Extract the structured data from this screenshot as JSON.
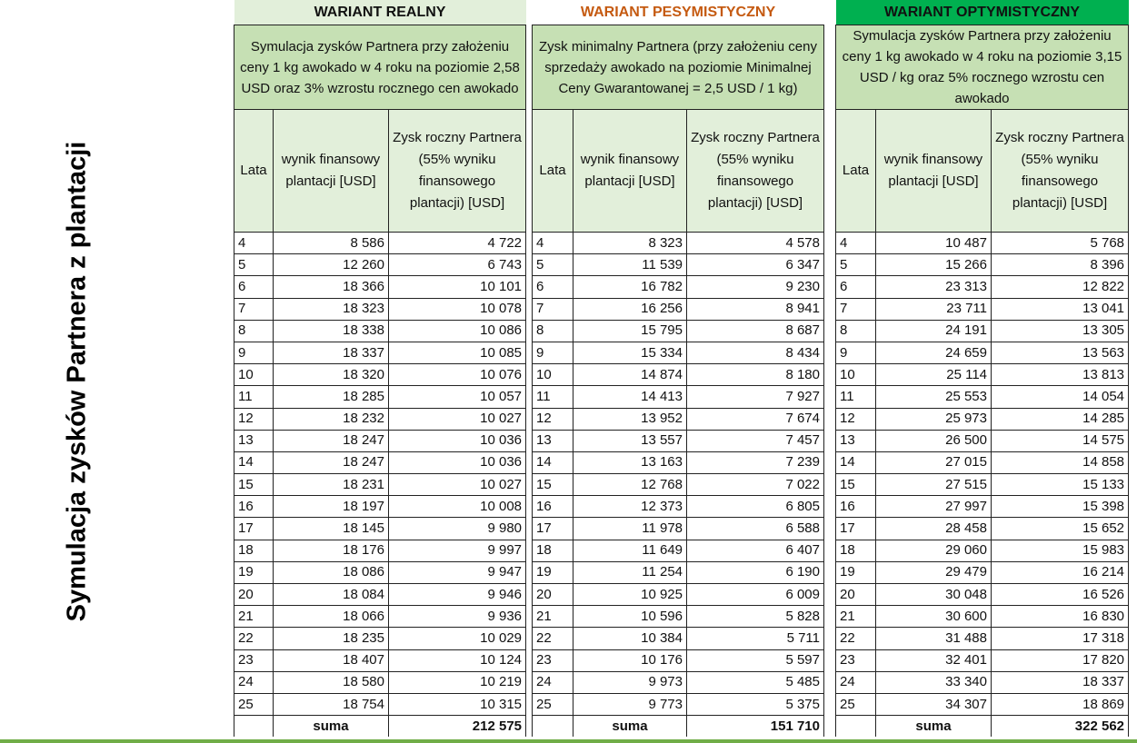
{
  "side_title": "Symulacja zysków Partnera z plantacji",
  "colors": {
    "desc_bg": "#c6e0b4",
    "header_bg": "#e2efda",
    "pesym_text": "#c55a11",
    "optym_bg": "#00b050",
    "realny_bg": "#e2efda",
    "bottom_bar": "#70ad47"
  },
  "headers": {
    "lata": "Lata",
    "wynik": "wynik finansowy plantacji [USD]",
    "zysk": "Zysk roczny Partnera (55% wyniku finansowego plantacji) [USD]",
    "suma": "suma"
  },
  "years": [
    "4",
    "5",
    "6",
    "7",
    "8",
    "9",
    "10",
    "11",
    "12",
    "13",
    "14",
    "15",
    "16",
    "17",
    "18",
    "19",
    "20",
    "21",
    "22",
    "23",
    "24",
    "25"
  ],
  "variants": [
    {
      "title": "WARIANT REALNY",
      "description": "Symulacja zysków Partnera przy założeniu ceny 1 kg awokado w 4 roku na poziomie 2,58 USD oraz 3% wzrostu rocznego cen awokado",
      "wynik": [
        "8 586",
        "12 260",
        "18 366",
        "18 323",
        "18 338",
        "18 337",
        "18 320",
        "18 285",
        "18 232",
        "18 247",
        "18 247",
        "18 231",
        "18 197",
        "18 145",
        "18 176",
        "18 086",
        "18 084",
        "18 066",
        "18 235",
        "18 407",
        "18 580",
        "18 754"
      ],
      "zysk": [
        "4 722",
        "6 743",
        "10 101",
        "10 078",
        "10 086",
        "10 085",
        "10 076",
        "10 057",
        "10 027",
        "10 036",
        "10 036",
        "10 027",
        "10 008",
        "9 980",
        "9 997",
        "9 947",
        "9 946",
        "9 936",
        "10 029",
        "10 124",
        "10 219",
        "10 315"
      ],
      "suma": "212 575"
    },
    {
      "title": "WARIANT PESYMISTYCZNY",
      "description": "Zysk minimalny Partnera (przy założeniu ceny sprzedaży awokado na poziomie Minimalnej Ceny Gwarantowanej = 2,5 USD / 1 kg)",
      "wynik": [
        "8 323",
        "11 539",
        "16 782",
        "16 256",
        "15 795",
        "15 334",
        "14 874",
        "14 413",
        "13 952",
        "13 557",
        "13 163",
        "12 768",
        "12 373",
        "11 978",
        "11 649",
        "11 254",
        "10 925",
        "10 596",
        "10 384",
        "10 176",
        "9 973",
        "9 773"
      ],
      "zysk": [
        "4 578",
        "6 347",
        "9 230",
        "8 941",
        "8 687",
        "8 434",
        "8 180",
        "7 927",
        "7 674",
        "7 457",
        "7 239",
        "7 022",
        "6 805",
        "6 588",
        "6 407",
        "6 190",
        "6 009",
        "5 828",
        "5 711",
        "5 597",
        "5 485",
        "5 375"
      ],
      "suma": "151 710"
    },
    {
      "title": "WARIANT OPTYMISTYCZNY",
      "description": "Symulacja zysków Partnera przy założeniu ceny 1 kg awokado w 4 roku na poziomie 3,15 USD / kg oraz 5% rocznego wzrostu cen awokado",
      "wynik": [
        "10 487",
        "15 266",
        "23 313",
        "23 711",
        "24 191",
        "24 659",
        "25 114",
        "25 553",
        "25 973",
        "26 500",
        "27 015",
        "27 515",
        "27 997",
        "28 458",
        "29 060",
        "29 479",
        "30 048",
        "30 600",
        "31 488",
        "32 401",
        "33 340",
        "34 307"
      ],
      "zysk": [
        "5 768",
        "8 396",
        "12 822",
        "13 041",
        "13 305",
        "13 563",
        "13 813",
        "14 054",
        "14 285",
        "14 575",
        "14 858",
        "15 133",
        "15 398",
        "15 652",
        "15 983",
        "16 214",
        "16 526",
        "16 830",
        "17 318",
        "17 820",
        "18 337",
        "18 869"
      ],
      "suma": "322 562"
    }
  ]
}
